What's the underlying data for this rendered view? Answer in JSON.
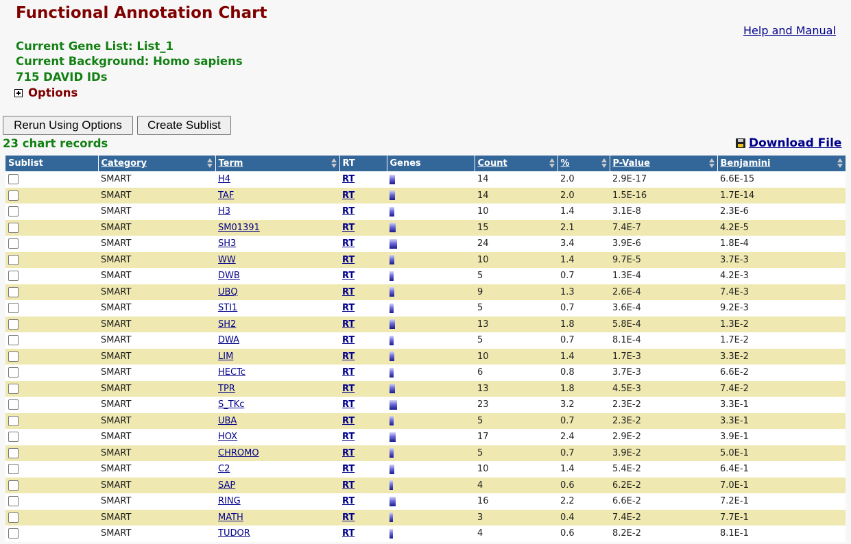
{
  "page": {
    "title": "Functional Annotation Chart",
    "help_link": "Help and Manual",
    "gene_list": "Current Gene List: List_1",
    "background": "Current Background: Homo sapiens",
    "id_count": "715 DAVID IDs",
    "options_label": "Options"
  },
  "buttons": {
    "rerun": "Rerun Using Options",
    "sublist": "Create Sublist"
  },
  "records_label": "23 chart records",
  "download_label": "Download File",
  "table": {
    "headers": {
      "sublist": "Sublist",
      "category": "Category",
      "term": "Term",
      "rt": "RT",
      "genes": "Genes",
      "count": "Count",
      "percent": "%",
      "pvalue": "P-Value",
      "benjamini": "Benjamini"
    },
    "rows": [
      {
        "category": "SMART",
        "term": "H4",
        "rt": "RT",
        "count": "14",
        "percent": "2.0",
        "pvalue": "2.9E-17",
        "benjamini": "6.6E-15"
      },
      {
        "category": "SMART",
        "term": "TAF",
        "rt": "RT",
        "count": "14",
        "percent": "2.0",
        "pvalue": "1.5E-16",
        "benjamini": "1.7E-14"
      },
      {
        "category": "SMART",
        "term": "H3",
        "rt": "RT",
        "count": "10",
        "percent": "1.4",
        "pvalue": "3.1E-8",
        "benjamini": "2.3E-6"
      },
      {
        "category": "SMART",
        "term": "SM01391",
        "rt": "RT",
        "count": "15",
        "percent": "2.1",
        "pvalue": "7.4E-7",
        "benjamini": "4.2E-5"
      },
      {
        "category": "SMART",
        "term": "SH3",
        "rt": "RT",
        "count": "24",
        "percent": "3.4",
        "pvalue": "3.9E-6",
        "benjamini": "1.8E-4"
      },
      {
        "category": "SMART",
        "term": "WW",
        "rt": "RT",
        "count": "10",
        "percent": "1.4",
        "pvalue": "9.7E-5",
        "benjamini": "3.7E-3"
      },
      {
        "category": "SMART",
        "term": "DWB",
        "rt": "RT",
        "count": "5",
        "percent": "0.7",
        "pvalue": "1.3E-4",
        "benjamini": "4.2E-3"
      },
      {
        "category": "SMART",
        "term": "UBQ",
        "rt": "RT",
        "count": "9",
        "percent": "1.3",
        "pvalue": "2.6E-4",
        "benjamini": "7.4E-3"
      },
      {
        "category": "SMART",
        "term": "STI1",
        "rt": "RT",
        "count": "5",
        "percent": "0.7",
        "pvalue": "3.6E-4",
        "benjamini": "9.2E-3"
      },
      {
        "category": "SMART",
        "term": "SH2",
        "rt": "RT",
        "count": "13",
        "percent": "1.8",
        "pvalue": "5.8E-4",
        "benjamini": "1.3E-2"
      },
      {
        "category": "SMART",
        "term": "DWA",
        "rt": "RT",
        "count": "5",
        "percent": "0.7",
        "pvalue": "8.1E-4",
        "benjamini": "1.7E-2"
      },
      {
        "category": "SMART",
        "term": "LIM",
        "rt": "RT",
        "count": "10",
        "percent": "1.4",
        "pvalue": "1.7E-3",
        "benjamini": "3.3E-2"
      },
      {
        "category": "SMART",
        "term": "HECTc",
        "rt": "RT",
        "count": "6",
        "percent": "0.8",
        "pvalue": "3.7E-3",
        "benjamini": "6.6E-2"
      },
      {
        "category": "SMART",
        "term": "TPR",
        "rt": "RT",
        "count": "13",
        "percent": "1.8",
        "pvalue": "4.5E-3",
        "benjamini": "7.4E-2"
      },
      {
        "category": "SMART",
        "term": "S_TKc",
        "rt": "RT",
        "count": "23",
        "percent": "3.2",
        "pvalue": "2.3E-2",
        "benjamini": "3.3E-1"
      },
      {
        "category": "SMART",
        "term": "UBA",
        "rt": "RT",
        "count": "5",
        "percent": "0.7",
        "pvalue": "2.3E-2",
        "benjamini": "3.3E-1"
      },
      {
        "category": "SMART",
        "term": "HOX",
        "rt": "RT",
        "count": "17",
        "percent": "2.4",
        "pvalue": "2.9E-2",
        "benjamini": "3.9E-1"
      },
      {
        "category": "SMART",
        "term": "CHROMO",
        "rt": "RT",
        "count": "5",
        "percent": "0.7",
        "pvalue": "3.9E-2",
        "benjamini": "5.0E-1"
      },
      {
        "category": "SMART",
        "term": "C2",
        "rt": "RT",
        "count": "10",
        "percent": "1.4",
        "pvalue": "5.4E-2",
        "benjamini": "6.4E-1"
      },
      {
        "category": "SMART",
        "term": "SAP",
        "rt": "RT",
        "count": "4",
        "percent": "0.6",
        "pvalue": "6.2E-2",
        "benjamini": "7.0E-1"
      },
      {
        "category": "SMART",
        "term": "RING",
        "rt": "RT",
        "count": "16",
        "percent": "2.2",
        "pvalue": "6.6E-2",
        "benjamini": "7.2E-1"
      },
      {
        "category": "SMART",
        "term": "MATH",
        "rt": "RT",
        "count": "3",
        "percent": "0.4",
        "pvalue": "7.4E-2",
        "benjamini": "7.7E-1"
      },
      {
        "category": "SMART",
        "term": "TUDOR",
        "rt": "RT",
        "count": "4",
        "percent": "0.6",
        "pvalue": "8.2E-2",
        "benjamini": "8.1E-1"
      }
    ]
  }
}
